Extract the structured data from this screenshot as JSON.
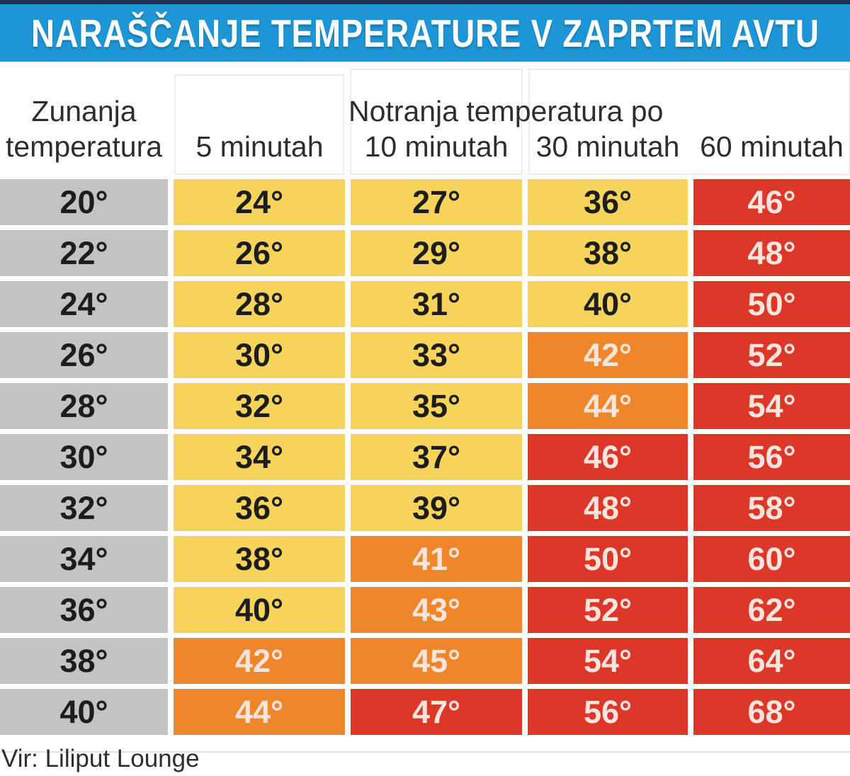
{
  "title": {
    "text": "NARAŠČANJE TEMPERATURE V ZAPRTEM AVTU"
  },
  "header": {
    "outside_label_line1": "Zunanja",
    "outside_label_line2": "temperatura",
    "inside_group_label": "Notranja temperatura po",
    "time_labels": [
      "5 minutah",
      "10 minutah",
      "30 minutah",
      "60 minutah"
    ]
  },
  "footer": {
    "source": "Vir: Liliput Lounge"
  },
  "colors": {
    "accent_navy": "#232C52",
    "title_bar_blue": "#1E96D5",
    "title_text": "#FFFFFF",
    "header_text": "#2E2E2E",
    "outside_cell_gray": "#C5C3C2",
    "warm_yellow": "#F6D45B",
    "hot_orange": "#EF8629",
    "extreme_red": "#DD372A",
    "dark_cell_text": "#1D1D1D",
    "light_cell_text": "#FAE4DE"
  },
  "chart_data": {
    "type": "table",
    "title": "NARAŠČANJE TEMPERATURE V ZAPRTEM AVTU",
    "columns": [
      "Zunanja temperatura",
      "5 minutah",
      "10 minutah",
      "30 minutah",
      "60 minutah"
    ],
    "column_group_label": "Notranja temperatura po",
    "rows": [
      {
        "outside": "20°",
        "values": [
          "24°",
          "27°",
          "36°",
          "46°"
        ],
        "levels": [
          "yellow",
          "yellow",
          "yellow",
          "red"
        ]
      },
      {
        "outside": "22°",
        "values": [
          "26°",
          "29°",
          "38°",
          "48°"
        ],
        "levels": [
          "yellow",
          "yellow",
          "yellow",
          "red"
        ]
      },
      {
        "outside": "24°",
        "values": [
          "28°",
          "31°",
          "40°",
          "50°"
        ],
        "levels": [
          "yellow",
          "yellow",
          "yellow",
          "red"
        ]
      },
      {
        "outside": "26°",
        "values": [
          "30°",
          "33°",
          "42°",
          "52°"
        ],
        "levels": [
          "yellow",
          "yellow",
          "orange",
          "red"
        ]
      },
      {
        "outside": "28°",
        "values": [
          "32°",
          "35°",
          "44°",
          "54°"
        ],
        "levels": [
          "yellow",
          "yellow",
          "orange",
          "red"
        ]
      },
      {
        "outside": "30°",
        "values": [
          "34°",
          "37°",
          "46°",
          "56°"
        ],
        "levels": [
          "yellow",
          "yellow",
          "red",
          "red"
        ]
      },
      {
        "outside": "32°",
        "values": [
          "36°",
          "39°",
          "48°",
          "58°"
        ],
        "levels": [
          "yellow",
          "yellow",
          "red",
          "red"
        ]
      },
      {
        "outside": "34°",
        "values": [
          "38°",
          "41°",
          "50°",
          "60°"
        ],
        "levels": [
          "yellow",
          "orange",
          "red",
          "red"
        ]
      },
      {
        "outside": "36°",
        "values": [
          "40°",
          "43°",
          "52°",
          "62°"
        ],
        "levels": [
          "yellow",
          "orange",
          "red",
          "red"
        ]
      },
      {
        "outside": "38°",
        "values": [
          "42°",
          "45°",
          "54°",
          "64°"
        ],
        "levels": [
          "orange",
          "orange",
          "red",
          "red"
        ]
      },
      {
        "outside": "40°",
        "values": [
          "44°",
          "47°",
          "56°",
          "68°"
        ],
        "levels": [
          "orange",
          "red",
          "red",
          "red"
        ]
      }
    ]
  }
}
